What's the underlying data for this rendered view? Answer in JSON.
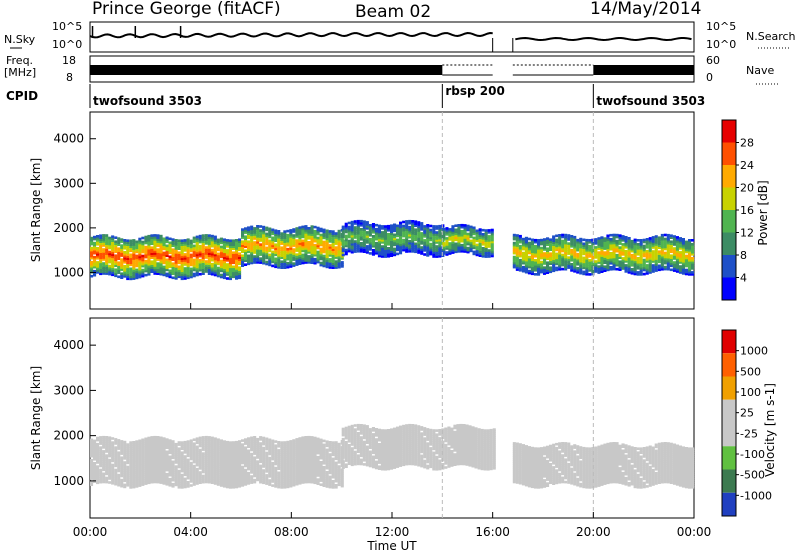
{
  "header": {
    "station": "Prince George (fitACF)",
    "beam": "Beam 02",
    "date": "14/May/2014"
  },
  "noise_panel": {
    "left_label": "N.Sky",
    "right_label": "N.Search",
    "left_ticks": [
      "10^5",
      "10^0"
    ],
    "right_ticks": [
      "10^5",
      "10^0"
    ]
  },
  "freq_panel": {
    "left_label_line1": "Freq.",
    "left_label_line2": "[MHz]",
    "left_ticks": [
      "18",
      "8"
    ],
    "right_label": "Nave",
    "right_ticks": [
      "60",
      "0"
    ]
  },
  "cpid_panel": {
    "label": "CPID",
    "modes": [
      {
        "name": "twofsound 3503",
        "start": "00:00",
        "end": "14:00"
      },
      {
        "name": "rbsp 200",
        "start": "14:00",
        "end": "20:00"
      },
      {
        "name": "twofsound 3503",
        "start": "20:00",
        "end": "24:00"
      }
    ]
  },
  "time_axis": {
    "label": "Time UT",
    "ticks": [
      "00:00",
      "04:00",
      "08:00",
      "12:00",
      "16:00",
      "20:00",
      "00:00"
    ]
  },
  "range_axis": {
    "label": "Slant Range [km]",
    "ticks": [
      "1000",
      "2000",
      "3000",
      "4000"
    ]
  },
  "chart_data": [
    {
      "type": "heatmap",
      "title": "Power",
      "ylabel": "Slant Range [km]",
      "xlabel": "Time UT",
      "x_range_hours": [
        0,
        24
      ],
      "ylim": [
        180,
        4600
      ],
      "colorbar": {
        "label": "Power [dB]",
        "ticks": [
          "4",
          "8",
          "12",
          "16",
          "20",
          "24",
          "28"
        ],
        "range": [
          0,
          30
        ]
      },
      "data_gap_hours": [
        16.0,
        16.8
      ],
      "echo_regions": [
        {
          "start_h": 0.0,
          "end_h": 6.0,
          "range_km": [
            900,
            1800
          ],
          "power_db": 26
        },
        {
          "start_h": 6.0,
          "end_h": 10.0,
          "range_km": [
            1150,
            2000
          ],
          "power_db": 22
        },
        {
          "start_h": 10.0,
          "end_h": 14.0,
          "range_km": [
            1400,
            2100
          ],
          "power_db": 14
        },
        {
          "start_h": 14.0,
          "end_h": 16.0,
          "range_km": [
            1400,
            2000
          ],
          "power_db": 18
        },
        {
          "start_h": 16.8,
          "end_h": 24.0,
          "range_km": [
            1000,
            1800
          ],
          "power_db": 20
        }
      ]
    },
    {
      "type": "heatmap",
      "title": "Velocity",
      "ylabel": "Slant Range [km]",
      "xlabel": "Time UT",
      "x_range_hours": [
        0,
        24
      ],
      "ylim": [
        180,
        4600
      ],
      "colorbar": {
        "label": "Velocity [m s-1]",
        "ticks": [
          "1000",
          "500",
          "100",
          "25",
          "-25",
          "-100",
          "-500",
          "-1000"
        ]
      },
      "data_gap_hours": [
        16.0,
        16.8
      ],
      "ground_scatter_color": "#c8c8c8",
      "echo_regions": [
        {
          "start_h": 0.0,
          "end_h": 10.0,
          "range_km": [
            900,
            1900
          ],
          "velocity": 0
        },
        {
          "start_h": 10.0,
          "end_h": 16.0,
          "range_km": [
            1300,
            2200
          ],
          "velocity": 0
        },
        {
          "start_h": 16.8,
          "end_h": 24.0,
          "range_km": [
            900,
            1800
          ],
          "velocity": 0
        }
      ]
    }
  ],
  "colors": {
    "power_scale": [
      "#0000ff",
      "#1e50c8",
      "#3c8c64",
      "#50b450",
      "#c8d200",
      "#ffaa00",
      "#ff5000",
      "#e60000"
    ],
    "velocity_scale": [
      "#2040c0",
      "#3c7a50",
      "#60c040",
      "#c8c8c8",
      "#c8c8c8",
      "#f0a000",
      "#ff6000",
      "#e00000"
    ],
    "ground_scatter": "#c8c8c8"
  }
}
